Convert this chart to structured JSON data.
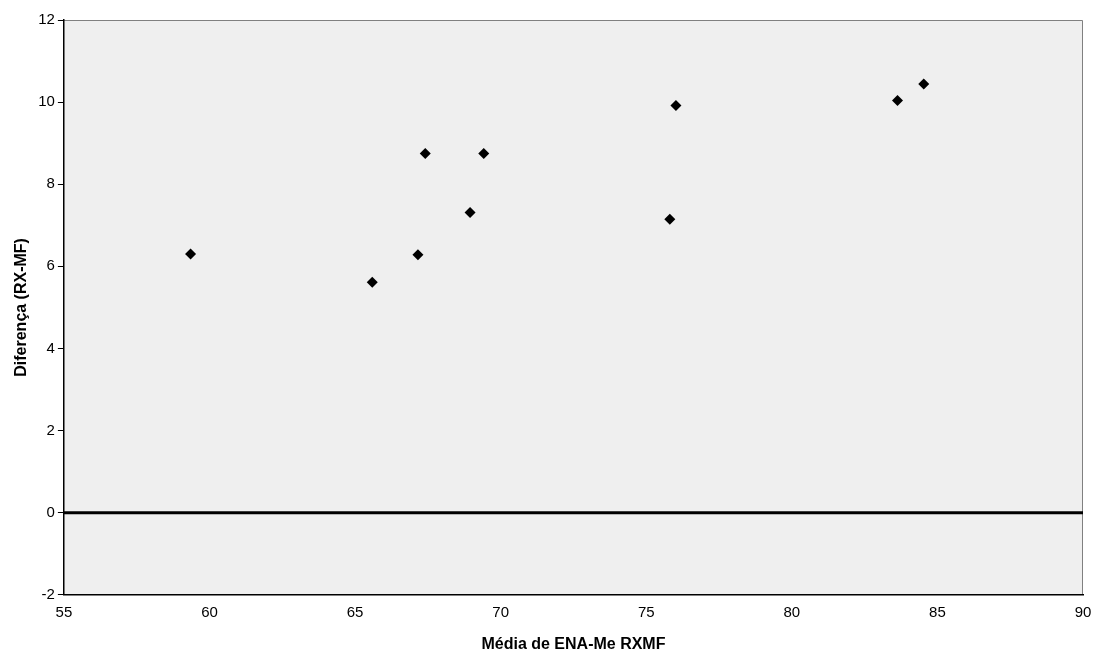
{
  "chart_data": {
    "type": "scatter",
    "xlabel": "Média de ENA-Me RXMF",
    "ylabel": "Diferença (RX-MF)",
    "x": [
      59.35,
      65.59,
      67.16,
      67.41,
      69.42,
      68.95,
      76.02,
      75.81,
      83.63,
      84.53
    ],
    "values": [
      6.3,
      5.61,
      6.28,
      8.75,
      8.75,
      7.31,
      9.92,
      7.15,
      10.04,
      10.44
    ],
    "color": "#000000",
    "marker": "diamond",
    "xlim": [
      55,
      90
    ],
    "xticks": [
      55,
      60,
      65,
      70,
      75,
      80,
      85,
      90
    ],
    "ylim": [
      -2,
      12
    ],
    "yticks": [
      -2,
      0,
      2,
      4,
      6,
      8,
      10,
      12
    ],
    "ref_lines": [
      {
        "axis": "y",
        "value": 0,
        "color": "#000000",
        "line_style": "solid"
      }
    ],
    "grid": false,
    "legend": false
  }
}
